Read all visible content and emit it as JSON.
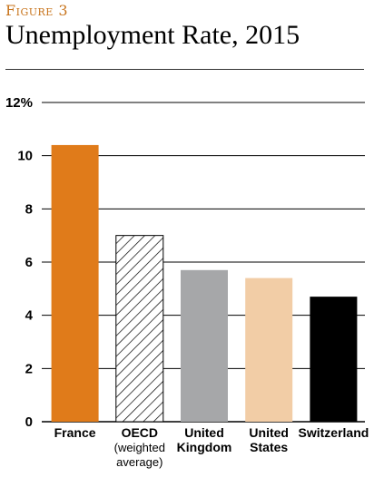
{
  "figure_label": "Figure 3",
  "chart_data": {
    "type": "bar",
    "title": "Unemployment Rate, 2015",
    "categories": [
      {
        "lines": [
          "France"
        ],
        "sub": []
      },
      {
        "lines": [
          "OECD"
        ],
        "sub": [
          "(weighted",
          "average)"
        ]
      },
      {
        "lines": [
          "United",
          "Kingdom"
        ],
        "sub": []
      },
      {
        "lines": [
          "United",
          "States"
        ],
        "sub": []
      },
      {
        "lines": [
          "Switzerland"
        ],
        "sub": []
      }
    ],
    "values": [
      10.4,
      7.0,
      5.7,
      5.4,
      4.7
    ],
    "bar_colors": [
      "#e07b1a",
      "hatched",
      "#a6a7a9",
      "#f2cda6",
      "#000000"
    ],
    "y_ticks": [
      "0",
      "2",
      "4",
      "6",
      "8",
      "10",
      "12%"
    ],
    "ylim": [
      0,
      12
    ],
    "grid": true
  }
}
